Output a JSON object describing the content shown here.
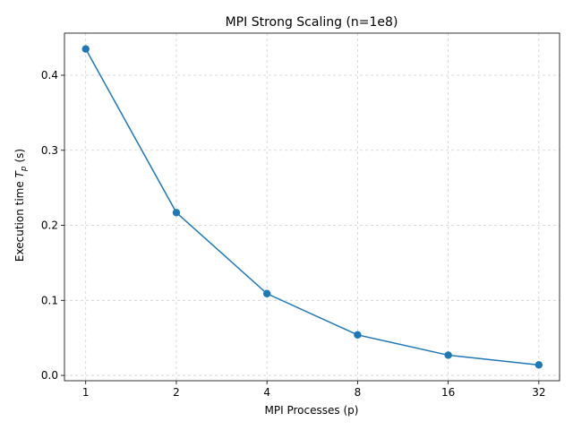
{
  "chart_data": {
    "type": "line",
    "title": "MPI Strong Scaling (n=1e8)",
    "xlabel": "MPI Processes (p)",
    "ylabel_prefix": "Execution time ",
    "ylabel_symbol": "T",
    "ylabel_subscript": "p",
    "ylabel_suffix": " (s)",
    "x_scale": "log2",
    "x": [
      1,
      2,
      4,
      8,
      16,
      32
    ],
    "x_tick_labels": [
      "1",
      "2",
      "4",
      "8",
      "16",
      "32"
    ],
    "y": [
      0.435,
      0.217,
      0.109,
      0.054,
      0.027,
      0.014
    ],
    "y_ticks": [
      0.0,
      0.1,
      0.2,
      0.3,
      0.4
    ],
    "y_tick_labels": [
      "0.0",
      "0.1",
      "0.2",
      "0.3",
      "0.4"
    ],
    "xlim": [
      0.85,
      37.5
    ],
    "ylim": [
      -0.0071,
      0.4561
    ],
    "grid": true,
    "legend": "none",
    "series_color": "#1f77b4",
    "grid_color": "#d0d0d0"
  }
}
